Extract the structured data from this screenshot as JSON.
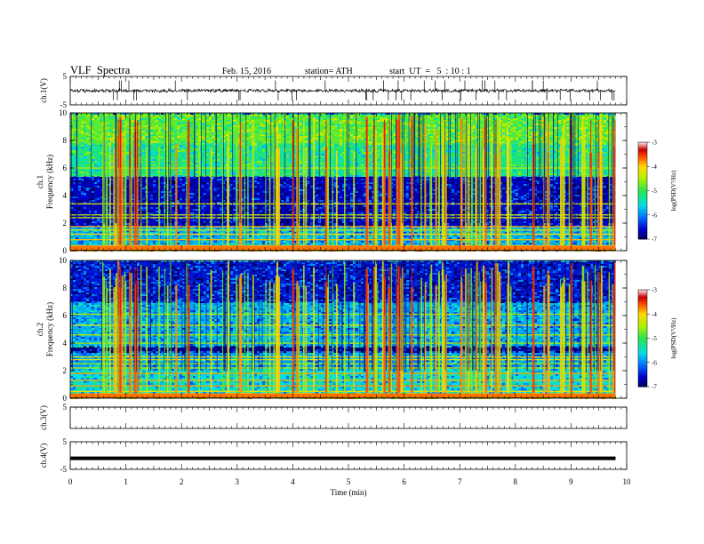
{
  "header": {
    "title": "VLF  Spectra",
    "date": "Feb. 15, 2016",
    "station": "station= ATH",
    "start": "start  UT  =   5  : 10 : 1"
  },
  "chart_data": [
    {
      "type": "line",
      "panel": "waveform",
      "channel": "ch.1",
      "ylabel": "ch.1(V)",
      "ylim": [
        -5,
        5
      ],
      "yticks": [
        5,
        -5
      ],
      "x_range_min": [
        0,
        9.8
      ],
      "level_v": 0.0,
      "noise_amplitude_v": 1.0
    },
    {
      "type": "heatmap",
      "panel": "spectrogram",
      "channel": "ch.1",
      "ylabel": [
        "ch.1",
        "Frequency  (kHz)"
      ],
      "ylim": [
        0,
        10
      ],
      "yticks": [
        0,
        2,
        4,
        6,
        8,
        10
      ],
      "x_range_min": [
        0,
        9.8
      ],
      "colorbar": {
        "label": "log(PSD(V²/Hz)",
        "range": [
          -7,
          -3
        ],
        "ticks": [
          -3,
          -4,
          -5,
          -6,
          -7
        ]
      },
      "background_log_psd_by_band_khz": [
        [
          0,
          0.4,
          -4.0
        ],
        [
          0.4,
          1.8,
          -5.8
        ],
        [
          1.8,
          5.4,
          -6.6
        ],
        [
          5.4,
          7.8,
          -5.2
        ],
        [
          7.8,
          10,
          -4.8
        ]
      ],
      "persistent_lines_khz": [
        0.2,
        0.35,
        0.8,
        1.2,
        1.5,
        1.75,
        2.4,
        2.6,
        3.4,
        6.0
      ]
    },
    {
      "type": "heatmap",
      "panel": "spectrogram",
      "channel": "ch.2",
      "ylabel": [
        "ch.2",
        "Frequency  (kHz)"
      ],
      "ylim": [
        0,
        10
      ],
      "yticks": [
        0,
        2,
        4,
        6,
        8,
        10
      ],
      "x_range_min": [
        0,
        9.8
      ],
      "colorbar": {
        "label": "log(PSD(V²/Hz)",
        "range": [
          -7,
          -3
        ],
        "ticks": [
          -3,
          -4,
          -5,
          -6,
          -7
        ]
      },
      "background_log_psd_by_band_khz": [
        [
          0,
          0.4,
          -4.2
        ],
        [
          0.4,
          2.2,
          -5.6
        ],
        [
          2.2,
          3.4,
          -5.9
        ],
        [
          3.4,
          3.8,
          -6.8
        ],
        [
          3.8,
          7.0,
          -5.8
        ],
        [
          7.0,
          10,
          -6.5
        ]
      ],
      "persistent_lines_khz": [
        0.5,
        0.9,
        1.3,
        1.8,
        2.2,
        2.5,
        2.8,
        3.0,
        4.0,
        4.6,
        5.3,
        6.1
      ]
    },
    {
      "type": "line",
      "panel": "waveform",
      "channel": "ch.3",
      "ylabel": "ch.3(V)",
      "ylim": [
        -5,
        5
      ],
      "yticks": [
        5
      ],
      "x_range_min": [
        0,
        9.8
      ],
      "level_v": 5.0,
      "noise_amplitude_v": 0.0
    },
    {
      "type": "line",
      "panel": "waveform",
      "channel": "ch.4",
      "ylabel": "ch.4(V)",
      "ylim": [
        -5,
        5
      ],
      "yticks": [
        5,
        -5
      ],
      "x_range_min": [
        0,
        9.8
      ],
      "level_v": -1.0,
      "noise_amplitude_v": 0.15
    }
  ],
  "xaxis": {
    "label": "Time  (min)",
    "range": [
      0,
      10
    ],
    "ticks": [
      "0",
      "1",
      "2",
      "3",
      "4",
      "5",
      "6",
      "7",
      "8",
      "9",
      "10"
    ]
  }
}
